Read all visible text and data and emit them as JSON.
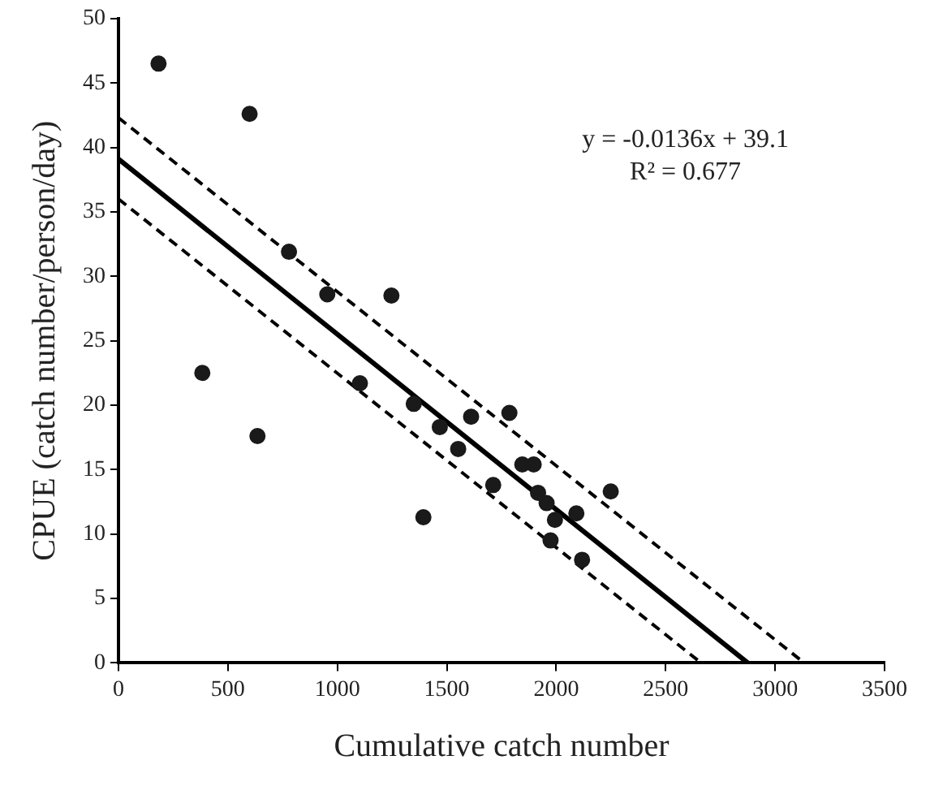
{
  "chart_data": {
    "type": "scatter",
    "xlabel": "Cumulative catch number",
    "ylabel": "CPUE (catch number/person/day)",
    "xlim": [
      0,
      3500
    ],
    "xticks": [
      0,
      500,
      1000,
      1500,
      2000,
      2500,
      3000,
      3500
    ],
    "ylim": [
      0,
      50
    ],
    "yticks": [
      0,
      5,
      10,
      15,
      20,
      25,
      30,
      35,
      40,
      45,
      50
    ],
    "grid": false,
    "legend": false,
    "annotations": [
      "y = -0.0136x + 39.1",
      "R² = 0.677"
    ],
    "series": [
      {
        "type": "scatter",
        "color": "#1a1a1a",
        "marker": "circle",
        "x": [
          183,
          599,
          383,
          635,
          779,
          954,
          1247,
          1103,
          1349,
          1468,
          1552,
          1611,
          1712,
          1393,
          1786,
          1845,
          1897,
          1917,
          1956,
          1994,
          1974,
          2092,
          2118,
          2249
        ],
        "values": [
          46.5,
          42.6,
          22.5,
          17.6,
          31.9,
          28.6,
          28.5,
          21.7,
          20.1,
          18.3,
          16.6,
          19.1,
          13.8,
          11.3,
          19.4,
          15.4,
          15.4,
          13.2,
          12.4,
          11.1,
          9.5,
          11.6,
          8.0,
          13.3
        ]
      },
      {
        "type": "line",
        "color": "#000000",
        "line_style": "solid",
        "marker": "none",
        "x": [
          0,
          2875
        ],
        "values": [
          39.1,
          0
        ]
      },
      {
        "type": "line",
        "color": "#000000",
        "line_style": "dashed",
        "marker": "none",
        "x": [
          0,
          3133
        ],
        "values": [
          42.3,
          0
        ]
      },
      {
        "type": "line",
        "color": "#000000",
        "line_style": "dashed",
        "marker": "none",
        "x": [
          0,
          2662
        ],
        "values": [
          36.0,
          0
        ]
      }
    ]
  }
}
